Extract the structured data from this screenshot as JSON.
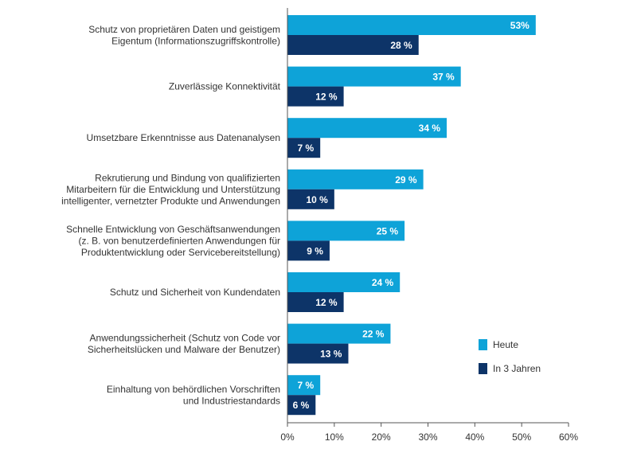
{
  "chart_data": {
    "type": "bar",
    "orientation": "horizontal",
    "categories": [
      [
        "Schutz von proprietären Daten und geistigem",
        "Eigentum (Informationszugriffskontrolle)"
      ],
      [
        "Zuverlässige Konnektivität"
      ],
      [
        "Umsetzbare Erkenntnisse aus Datenanalysen"
      ],
      [
        "Rekrutierung und Bindung von qualifizierten",
        "Mitarbeitern für die Entwicklung und Unterstützung",
        "intelligenter, vernetzter Produkte und Anwendungen"
      ],
      [
        "Schnelle Entwicklung von Geschäftsanwendungen",
        "(z. B. von benutzerdefinierten Anwendungen für",
        "Produktentwicklung oder Servicebereitstellung)"
      ],
      [
        "Schutz und Sicherheit von Kundendaten"
      ],
      [
        "Anwendungssicherheit (Schutz von Code vor",
        "Sicherheitslücken und Malware der Benutzer)"
      ],
      [
        "Einhaltung von behördlichen Vorschriften",
        "und Industriestandards"
      ]
    ],
    "series": [
      {
        "name": "Heute",
        "color": "#0ea3d8",
        "values": [
          53,
          37,
          34,
          29,
          25,
          24,
          22,
          7
        ],
        "labels": [
          "53%",
          "37 %",
          "34 %",
          "29 %",
          "25 %",
          "24 %",
          "22 %",
          "7 %"
        ]
      },
      {
        "name": "In 3 Jahren",
        "color": "#0d3468",
        "values": [
          28,
          12,
          7,
          10,
          9,
          12,
          13,
          6
        ],
        "labels": [
          "28 %",
          "12 %",
          "7 %",
          "10 %",
          "9 %",
          "12 %",
          "13 %",
          "6 %"
        ]
      }
    ],
    "xlim": [
      0,
      60
    ],
    "xticks": [
      "0%",
      "10%",
      "20%",
      "30%",
      "40%",
      "50%",
      "60%"
    ],
    "grid": false,
    "legend_placement": "right"
  }
}
